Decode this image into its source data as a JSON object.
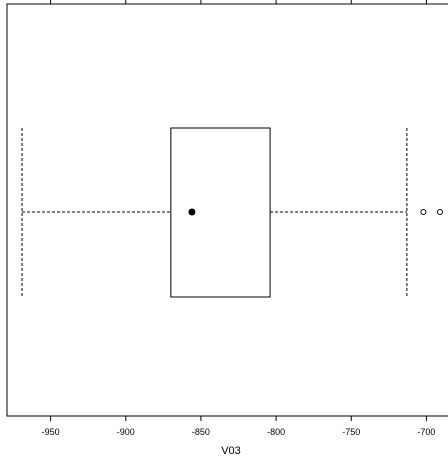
{
  "chart_data": {
    "type": "box",
    "orientation": "horizontal",
    "xlabel": "V03",
    "xlim": [
      -979,
      -681
    ],
    "x_ticks": [
      -950,
      -900,
      -850,
      -800,
      -750,
      -700
    ],
    "x_tick_labels": [
      "-950",
      "-900",
      "-850",
      "-800",
      "-750",
      "-700"
    ],
    "box": {
      "whisker_low": -969,
      "q1": -870,
      "median": -856,
      "q3": -804,
      "whisker_high": -713,
      "outliers": [
        -702,
        -691
      ]
    },
    "grid": false,
    "legend": "none"
  }
}
